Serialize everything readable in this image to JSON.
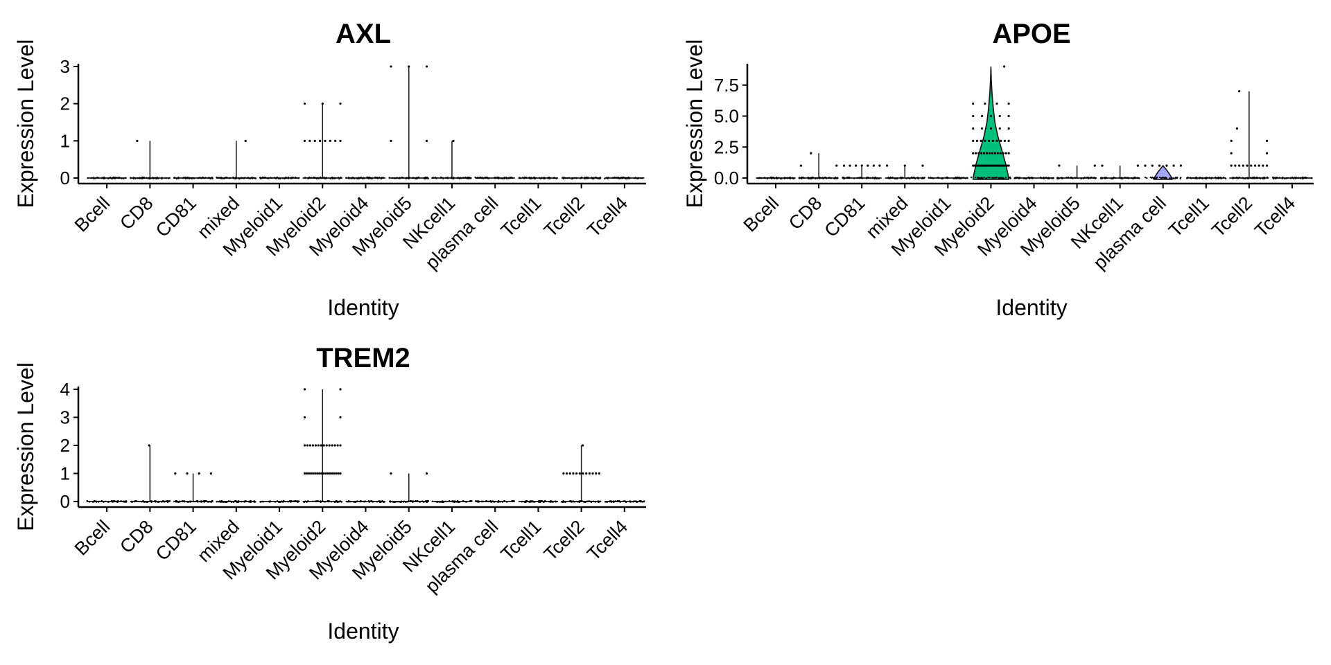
{
  "chart_data": [
    {
      "type": "violin",
      "title": "AXL",
      "xlabel": "Identity",
      "ylabel": "Expression Level",
      "ylim": [
        0,
        3
      ],
      "yticks": [
        "0",
        "1",
        "2",
        "3"
      ],
      "categories": [
        "Bcell",
        "CD8",
        "CD81",
        "mixed",
        "Myeloid1",
        "Myeloid2",
        "Myeloid4",
        "Myeloid5",
        "NKcell1",
        "plasma cell",
        "Tcell1",
        "Tcell2",
        "Tcell4"
      ],
      "max_values": [
        0,
        1,
        0,
        1,
        0,
        2,
        0,
        3,
        1,
        0,
        0,
        0,
        0
      ],
      "nonzero_counts": [
        {},
        {
          "1": 1
        },
        {},
        {
          "1": 1
        },
        {},
        {
          "1": 8,
          "2": 3
        },
        {},
        {
          "1": 2,
          "3": 3
        },
        {
          "1": 1
        },
        {},
        {},
        {},
        {}
      ],
      "fill": null
    },
    {
      "type": "violin",
      "title": "APOE",
      "xlabel": "Identity",
      "ylabel": "Expression Level",
      "ylim": [
        0,
        9
      ],
      "yticks": [
        "0.0",
        "2.5",
        "5.0",
        "7.5"
      ],
      "categories": [
        "Bcell",
        "CD8",
        "CD81",
        "mixed",
        "Myeloid1",
        "Myeloid2",
        "Myeloid4",
        "Myeloid5",
        "NKcell1",
        "plasma cell",
        "Tcell1",
        "Tcell2",
        "Tcell4"
      ],
      "max_values": [
        0,
        2,
        1,
        1,
        0,
        9,
        0,
        1,
        1,
        1,
        0,
        7,
        0
      ],
      "nonzero_counts": [
        {},
        {
          "1": 2,
          "2": 1
        },
        {
          "1": 7
        },
        {
          "1": 3
        },
        {},
        {
          "1": 22,
          "2": 14,
          "3": 10,
          "4": 5,
          "5": 5,
          "6": 4,
          "9": 1
        },
        {},
        {
          "1": 2
        },
        {
          "1": 2
        },
        {
          "1": 6
        },
        {},
        {
          "1": 10,
          "2": 2,
          "3": 2,
          "4": 1,
          "7": 1
        },
        {}
      ],
      "violin_widths": [
        0,
        0,
        0,
        0,
        0,
        [
          0.9,
          0.75,
          0.55,
          0.35,
          0.2,
          0.12,
          0.06,
          0.02
        ],
        0,
        0,
        0,
        [
          0.45,
          0.25
        ],
        0,
        0,
        0
      ],
      "fill": "#00BF7D"
    },
    {
      "type": "violin",
      "title": "TREM2",
      "xlabel": "Identity",
      "ylabel": "Expression Level",
      "ylim": [
        0,
        4
      ],
      "yticks": [
        "0",
        "1",
        "2",
        "3",
        "4"
      ],
      "categories": [
        "Bcell",
        "CD8",
        "CD81",
        "mixed",
        "Myeloid1",
        "Myeloid2",
        "Myeloid4",
        "Myeloid5",
        "NKcell1",
        "plasma cell",
        "Tcell1",
        "Tcell2",
        "Tcell4"
      ],
      "max_values": [
        0,
        2,
        1,
        0,
        0,
        4,
        0,
        1,
        0,
        0,
        0,
        2,
        0
      ],
      "nonzero_counts": [
        {},
        {
          "2": 1
        },
        {
          "1": 4
        },
        {},
        {},
        {
          "1": 18,
          "2": 14,
          "3": 2,
          "4": 2
        },
        {},
        {
          "1": 2
        },
        {},
        {},
        {},
        {
          "1": 12,
          "2": 1
        },
        {}
      ],
      "fill": null
    }
  ]
}
